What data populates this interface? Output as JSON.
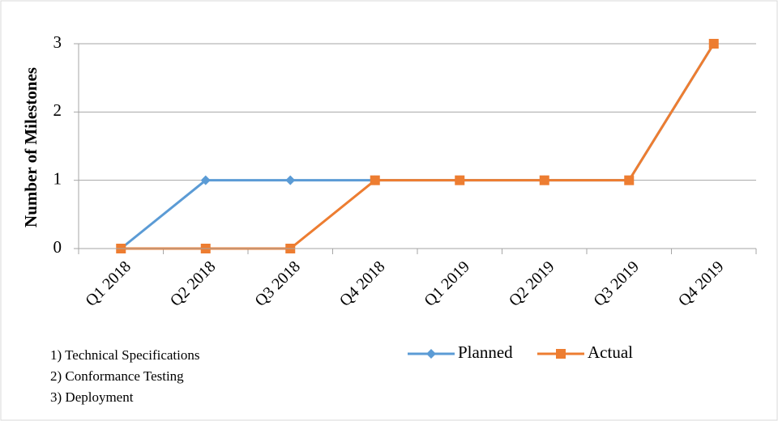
{
  "chart_data": {
    "type": "line",
    "y_label": "Number of Milestones",
    "categories": [
      "Q1 2018",
      "Q2 2018",
      "Q3 2018",
      "Q4 2018",
      "Q1 2019",
      "Q2 2019",
      "Q3 2019",
      "Q4 2019"
    ],
    "series": [
      {
        "name": "Planned",
        "color": "#5b9bd5",
        "marker": "diamond",
        "values": [
          0,
          1,
          1,
          1,
          1,
          1,
          1,
          3
        ]
      },
      {
        "name": "Actual",
        "color": "#ed7d31",
        "marker": "square",
        "values": [
          0,
          0,
          0,
          1,
          1,
          1,
          1,
          3
        ]
      }
    ],
    "ylim": [
      0,
      3
    ],
    "yticks": [
      0,
      1,
      2,
      3
    ],
    "grid": true,
    "legend": "bottom",
    "annotations": [
      "1) Technical Specifications",
      "2) Conformance Testing",
      "3) Deployment"
    ]
  }
}
